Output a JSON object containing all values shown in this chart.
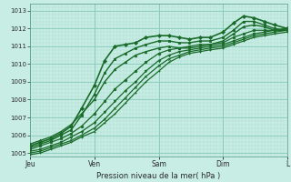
{
  "xlabel": "Pression niveau de la mer( hPa )",
  "bg_color": "#c8ede4",
  "grid_color_major": "#88ccbb",
  "grid_color_minor": "#aaddd0",
  "line_color": "#1a6b2a",
  "ylim": [
    1004.8,
    1013.4
  ],
  "xlim": [
    0,
    100
  ],
  "yticks": [
    1005,
    1006,
    1007,
    1008,
    1009,
    1010,
    1011,
    1012,
    1013
  ],
  "day_labels": [
    "Jeu",
    "Ven",
    "Sam",
    "Dim",
    "L"
  ],
  "day_positions": [
    0,
    25,
    50,
    75,
    100
  ],
  "series": [
    {
      "x": [
        0,
        4,
        8,
        12,
        16,
        20,
        25,
        29,
        33,
        37,
        41,
        45,
        50,
        54,
        58,
        62,
        66,
        70,
        75,
        79,
        83,
        87,
        91,
        95,
        100
      ],
      "y": [
        1005.4,
        1005.6,
        1005.8,
        1006.1,
        1006.5,
        1007.5,
        1008.8,
        1010.2,
        1011.0,
        1011.1,
        1011.2,
        1011.5,
        1011.6,
        1011.6,
        1011.5,
        1011.4,
        1011.5,
        1011.5,
        1011.8,
        1012.3,
        1012.7,
        1012.6,
        1012.4,
        1012.2,
        1012.0
      ],
      "marker": "D",
      "lw": 1.2,
      "ms": 2.0
    },
    {
      "x": [
        0,
        4,
        8,
        12,
        16,
        20,
        25,
        29,
        33,
        37,
        41,
        45,
        50,
        54,
        58,
        62,
        66,
        70,
        75,
        79,
        83,
        87,
        91,
        95,
        100
      ],
      "y": [
        1005.3,
        1005.5,
        1005.7,
        1006.0,
        1006.3,
        1007.1,
        1008.3,
        1009.5,
        1010.3,
        1010.6,
        1010.9,
        1011.1,
        1011.3,
        1011.3,
        1011.2,
        1011.2,
        1011.3,
        1011.3,
        1011.5,
        1011.9,
        1012.4,
        1012.4,
        1012.2,
        1012.0,
        1011.9
      ],
      "marker": "s",
      "lw": 1.0,
      "ms": 1.8
    },
    {
      "x": [
        0,
        4,
        8,
        12,
        16,
        20,
        25,
        29,
        33,
        37,
        41,
        45,
        50,
        54,
        58,
        62,
        66,
        70,
        75,
        79,
        83,
        87,
        91,
        95,
        100
      ],
      "y": [
        1005.5,
        1005.7,
        1005.9,
        1006.2,
        1006.6,
        1007.2,
        1008.0,
        1009.0,
        1009.7,
        1010.1,
        1010.5,
        1010.7,
        1010.9,
        1011.0,
        1010.9,
        1010.9,
        1011.0,
        1011.1,
        1011.3,
        1011.7,
        1012.1,
        1012.2,
        1012.1,
        1011.9,
        1011.9
      ],
      "marker": "^",
      "lw": 1.0,
      "ms": 1.8
    },
    {
      "x": [
        0,
        4,
        8,
        12,
        16,
        20,
        25,
        29,
        33,
        37,
        41,
        45,
        50,
        54,
        58,
        62,
        66,
        70,
        75,
        79,
        83,
        87,
        91,
        95,
        100
      ],
      "y": [
        1005.2,
        1005.4,
        1005.6,
        1005.8,
        1006.1,
        1006.5,
        1007.2,
        1007.9,
        1008.6,
        1009.1,
        1009.6,
        1010.1,
        1010.6,
        1010.8,
        1010.9,
        1011.0,
        1011.1,
        1011.1,
        1011.2,
        1011.5,
        1011.7,
        1011.9,
        1011.9,
        1011.9,
        1012.0
      ],
      "marker": "o",
      "lw": 0.9,
      "ms": 1.8
    },
    {
      "x": [
        0,
        4,
        8,
        12,
        16,
        20,
        25,
        29,
        33,
        37,
        41,
        45,
        50,
        54,
        58,
        62,
        66,
        70,
        75,
        79,
        83,
        87,
        91,
        95,
        100
      ],
      "y": [
        1005.1,
        1005.2,
        1005.4,
        1005.6,
        1005.9,
        1006.2,
        1006.7,
        1007.3,
        1007.9,
        1008.5,
        1009.0,
        1009.6,
        1010.2,
        1010.5,
        1010.7,
        1010.8,
        1010.9,
        1011.0,
        1011.1,
        1011.3,
        1011.5,
        1011.7,
        1011.8,
        1011.9,
        1012.0
      ],
      "marker": "v",
      "lw": 0.9,
      "ms": 1.8
    },
    {
      "x": [
        0,
        4,
        8,
        12,
        16,
        20,
        25,
        29,
        33,
        37,
        41,
        45,
        50,
        54,
        58,
        62,
        66,
        70,
        75,
        79,
        83,
        87,
        91,
        95,
        100
      ],
      "y": [
        1005.0,
        1005.1,
        1005.3,
        1005.5,
        1005.7,
        1006.0,
        1006.4,
        1006.9,
        1007.5,
        1008.1,
        1008.7,
        1009.3,
        1009.9,
        1010.3,
        1010.5,
        1010.7,
        1010.8,
        1010.9,
        1011.0,
        1011.2,
        1011.4,
        1011.6,
        1011.7,
        1011.8,
        1011.9
      ],
      "marker": "x",
      "lw": 0.9,
      "ms": 1.8
    },
    {
      "x": [
        0,
        4,
        8,
        12,
        16,
        20,
        25,
        29,
        33,
        37,
        41,
        45,
        50,
        54,
        58,
        62,
        66,
        70,
        75,
        79,
        83,
        87,
        91,
        95,
        100
      ],
      "y": [
        1004.9,
        1005.0,
        1005.2,
        1005.4,
        1005.6,
        1005.9,
        1006.2,
        1006.7,
        1007.2,
        1007.8,
        1008.4,
        1009.0,
        1009.6,
        1010.1,
        1010.4,
        1010.6,
        1010.7,
        1010.8,
        1010.9,
        1011.1,
        1011.3,
        1011.5,
        1011.6,
        1011.7,
        1011.8
      ],
      "marker": "+",
      "lw": 0.9,
      "ms": 1.8
    }
  ]
}
